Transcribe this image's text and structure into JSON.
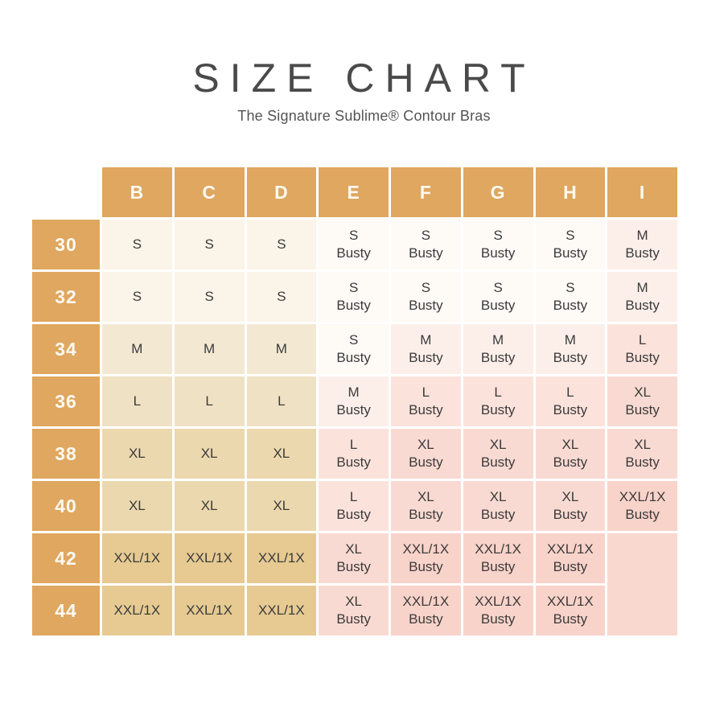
{
  "page": {
    "title": "SIZE CHART",
    "subtitle": "The Signature Sublime® Contour Bras"
  },
  "chart_data": {
    "type": "table",
    "title": "SIZE CHART",
    "subtitle": "The Signature Sublime® Contour Bras",
    "column_headers": [
      "B",
      "C",
      "D",
      "E",
      "F",
      "G",
      "H",
      "I"
    ],
    "row_headers": [
      "30",
      "32",
      "34",
      "36",
      "38",
      "40",
      "42",
      "44"
    ],
    "rows": [
      [
        "S",
        "S",
        "S",
        "S Busty",
        "S Busty",
        "S Busty",
        "S Busty",
        "M Busty"
      ],
      [
        "S",
        "S",
        "S",
        "S Busty",
        "S Busty",
        "S Busty",
        "S Busty",
        "M Busty"
      ],
      [
        "M",
        "M",
        "M",
        "S Busty",
        "M Busty",
        "M Busty",
        "M Busty",
        "L Busty"
      ],
      [
        "L",
        "L",
        "L",
        "M Busty",
        "L Busty",
        "L Busty",
        "L Busty",
        "XL Busty"
      ],
      [
        "XL",
        "XL",
        "XL",
        "L Busty",
        "XL Busty",
        "XL Busty",
        "XL Busty",
        "XL Busty"
      ],
      [
        "XL",
        "XL",
        "XL",
        "L Busty",
        "XL Busty",
        "XL Busty",
        "XL Busty",
        "XXL/1X Busty"
      ],
      [
        "XXL/1X",
        "XXL/1X",
        "XXL/1X",
        "XL Busty",
        "XXL/1X Busty",
        "XXL/1X Busty",
        "XXL/1X Busty",
        ""
      ],
      [
        "XXL/1X",
        "XXL/1X",
        "XXL/1X",
        "XL Busty",
        "XXL/1X Busty",
        "XXL/1X Busty",
        "XXL/1X Busty",
        ""
      ]
    ],
    "merged_empty_cell": {
      "column": "I",
      "rows": [
        "42",
        "44"
      ]
    },
    "layout": {
      "legend": "none",
      "grid": "white 3px gaps between cells"
    },
    "colors": {
      "header_gold": "#DFA75F",
      "header_text": "#FDF9F2",
      "cell_text": "#3B3B3B",
      "page_background": "#FFFFFF",
      "size_fill": {
        "S": "#FAF4E9",
        "M": "#F3E9D2",
        "L": "#EFE2C4",
        "XL": "#EBD8AE",
        "XXL/1X": "#E6CA92",
        "S Busty": "#FEFAF6",
        "M Busty": "#FCEFEA",
        "L Busty": "#FBE3DC",
        "XL Busty": "#F9DAD2",
        "XXL/1X Busty": "#F8D3CA",
        "": "#F9D8D0"
      }
    }
  }
}
